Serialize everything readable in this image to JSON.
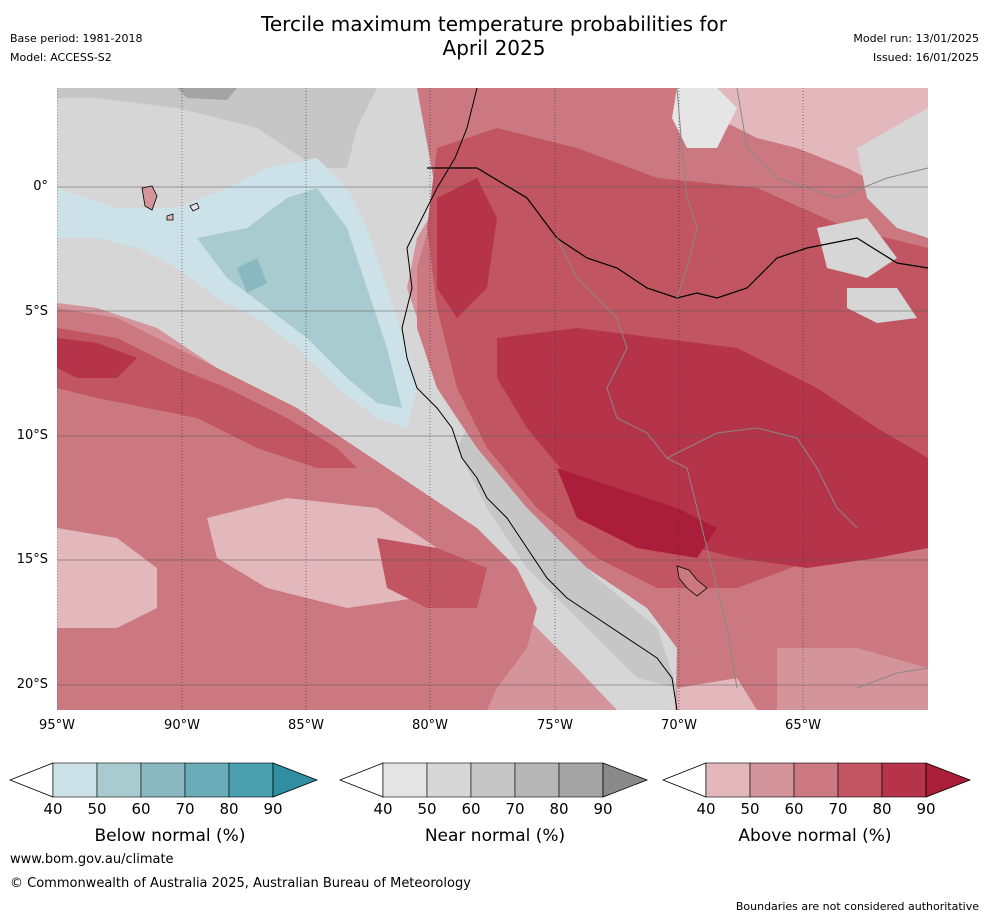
{
  "header": {
    "title_line1": "Tercile maximum temperature probabilities for",
    "title_line2": "April 2025",
    "base_period": "Base period: 1981-2018",
    "model": "Model: ACCESS-S2",
    "model_run": "Model run: 13/01/2025",
    "issued": "Issued: 16/01/2025"
  },
  "map": {
    "lat_labels": [
      "0°",
      "5°S",
      "10°S",
      "15°S",
      "20°S"
    ],
    "lon_labels": [
      "95°W",
      "90°W",
      "85°W",
      "80°W",
      "75°W",
      "70°W",
      "65°W"
    ]
  },
  "colorbars": [
    {
      "id": "below",
      "label": "Below normal (%)",
      "ticks": [
        "40",
        "50",
        "60",
        "70",
        "80",
        "90"
      ],
      "colors": [
        "#cce2e8",
        "#a8cbd0",
        "#8ab8c1",
        "#6aacb8",
        "#4aa0ae",
        "#2f8ea0"
      ]
    },
    {
      "id": "near",
      "label": "Near normal (%)",
      "ticks": [
        "40",
        "50",
        "60",
        "70",
        "80",
        "90"
      ],
      "colors": [
        "#e5e5e5",
        "#d6d6d6",
        "#c6c6c6",
        "#b6b6b6",
        "#a4a4a4",
        "#8a8a8a"
      ]
    },
    {
      "id": "above",
      "label": "Above normal (%)",
      "ticks": [
        "40",
        "50",
        "60",
        "70",
        "80",
        "90"
      ],
      "colors": [
        "#e2b8bd",
        "#d4949b",
        "#cb7880",
        "#c15662",
        "#b6344a",
        "#aa1e3a"
      ]
    }
  ],
  "footer": {
    "url": "www.bom.gov.au/climate",
    "copyright": "© Commonwealth of Australia 2025, Australian Bureau of Meteorology",
    "note": "Boundaries are not considered authoritative"
  }
}
